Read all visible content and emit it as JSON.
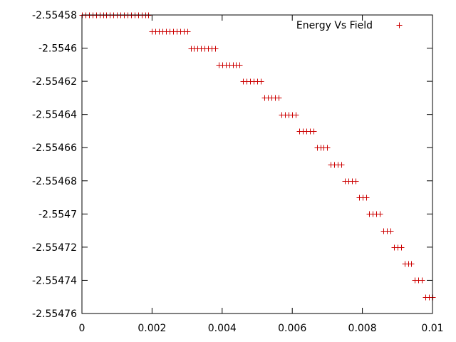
{
  "chart_data": {
    "type": "scatter",
    "title": "",
    "xlabel": "",
    "ylabel": "",
    "xlim": [
      0,
      0.01
    ],
    "ylim": [
      -2.55476,
      -2.55458
    ],
    "grid": false,
    "legend_position": "top-right",
    "x_ticks": [
      {
        "value": 0,
        "label": "0"
      },
      {
        "value": 0.002,
        "label": "0.002"
      },
      {
        "value": 0.004,
        "label": "0.004"
      },
      {
        "value": 0.006,
        "label": "0.006"
      },
      {
        "value": 0.008,
        "label": "0.008"
      },
      {
        "value": 0.01,
        "label": "0.01"
      }
    ],
    "y_ticks": [
      {
        "value": -2.55458,
        "label": "-2.55458"
      },
      {
        "value": -2.5546,
        "label": "-2.5546"
      },
      {
        "value": -2.55462,
        "label": "-2.55462"
      },
      {
        "value": -2.55464,
        "label": "-2.55464"
      },
      {
        "value": -2.55466,
        "label": "-2.55466"
      },
      {
        "value": -2.55468,
        "label": "-2.55468"
      },
      {
        "value": -2.5547,
        "label": "-2.5547"
      },
      {
        "value": -2.55472,
        "label": "-2.55472"
      },
      {
        "value": -2.55474,
        "label": "-2.55474"
      },
      {
        "value": -2.55476,
        "label": "-2.55476"
      }
    ],
    "series": [
      {
        "name": "Energy Vs Field",
        "color": "#cc0000",
        "marker": "plus",
        "points": [
          [
            0,
            -2.55458
          ],
          [
            0.0001,
            -2.55458
          ],
          [
            0.0002,
            -2.55458
          ],
          [
            0.0003,
            -2.55458
          ],
          [
            0.0004,
            -2.55458
          ],
          [
            0.0005,
            -2.55458
          ],
          [
            0.0006,
            -2.55458
          ],
          [
            0.0007,
            -2.55458
          ],
          [
            0.0008,
            -2.55458
          ],
          [
            0.0009,
            -2.55458
          ],
          [
            0.001,
            -2.55458
          ],
          [
            0.0011,
            -2.55458
          ],
          [
            0.0012,
            -2.55458
          ],
          [
            0.0013,
            -2.55458
          ],
          [
            0.0014,
            -2.55458
          ],
          [
            0.0015,
            -2.55458
          ],
          [
            0.0016,
            -2.55458
          ],
          [
            0.0017,
            -2.55458
          ],
          [
            0.0018,
            -2.55458
          ],
          [
            0.0019,
            -2.55458
          ],
          [
            0.002,
            -2.55459
          ],
          [
            0.0021,
            -2.55459
          ],
          [
            0.0022,
            -2.55459
          ],
          [
            0.0023,
            -2.55459
          ],
          [
            0.0024,
            -2.55459
          ],
          [
            0.0025,
            -2.55459
          ],
          [
            0.0026,
            -2.55459
          ],
          [
            0.0027,
            -2.55459
          ],
          [
            0.0028,
            -2.55459
          ],
          [
            0.0029,
            -2.55459
          ],
          [
            0.003,
            -2.55459
          ],
          [
            0.0031,
            -2.5546
          ],
          [
            0.0032,
            -2.5546
          ],
          [
            0.0033,
            -2.5546
          ],
          [
            0.0034,
            -2.5546
          ],
          [
            0.0035,
            -2.5546
          ],
          [
            0.0036,
            -2.5546
          ],
          [
            0.0037,
            -2.5546
          ],
          [
            0.0038,
            -2.5546
          ],
          [
            0.0039,
            -2.55461
          ],
          [
            0.004,
            -2.55461
          ],
          [
            0.0041,
            -2.55461
          ],
          [
            0.0042,
            -2.55461
          ],
          [
            0.0043,
            -2.55461
          ],
          [
            0.0044,
            -2.55461
          ],
          [
            0.0045,
            -2.55461
          ],
          [
            0.0046,
            -2.55462
          ],
          [
            0.0047,
            -2.55462
          ],
          [
            0.0048,
            -2.55462
          ],
          [
            0.0049,
            -2.55462
          ],
          [
            0.005,
            -2.55462
          ],
          [
            0.0051,
            -2.55462
          ],
          [
            0.0052,
            -2.55463
          ],
          [
            0.0053,
            -2.55463
          ],
          [
            0.0054,
            -2.55463
          ],
          [
            0.0055,
            -2.55463
          ],
          [
            0.0056,
            -2.55463
          ],
          [
            0.0057,
            -2.55464
          ],
          [
            0.0058,
            -2.55464
          ],
          [
            0.0059,
            -2.55464
          ],
          [
            0.006,
            -2.55464
          ],
          [
            0.0061,
            -2.55464
          ],
          [
            0.0062,
            -2.55465
          ],
          [
            0.0063,
            -2.55465
          ],
          [
            0.0064,
            -2.55465
          ],
          [
            0.0065,
            -2.55465
          ],
          [
            0.0066,
            -2.55465
          ],
          [
            0.0067,
            -2.55466
          ],
          [
            0.0068,
            -2.55466
          ],
          [
            0.0069,
            -2.55466
          ],
          [
            0.007,
            -2.55466
          ],
          [
            0.0071,
            -2.55467
          ],
          [
            0.0072,
            -2.55467
          ],
          [
            0.0073,
            -2.55467
          ],
          [
            0.0074,
            -2.55467
          ],
          [
            0.0075,
            -2.55468
          ],
          [
            0.0076,
            -2.55468
          ],
          [
            0.0077,
            -2.55468
          ],
          [
            0.0078,
            -2.55468
          ],
          [
            0.0079,
            -2.55469
          ],
          [
            0.008,
            -2.55469
          ],
          [
            0.0081,
            -2.55469
          ],
          [
            0.0082,
            -2.5547
          ],
          [
            0.0083,
            -2.5547
          ],
          [
            0.0084,
            -2.5547
          ],
          [
            0.0085,
            -2.5547
          ],
          [
            0.0086,
            -2.55471
          ],
          [
            0.0087,
            -2.55471
          ],
          [
            0.0088,
            -2.55471
          ],
          [
            0.0089,
            -2.55472
          ],
          [
            0.009,
            -2.55472
          ],
          [
            0.0091,
            -2.55472
          ],
          [
            0.0092,
            -2.55473
          ],
          [
            0.0093,
            -2.55473
          ],
          [
            0.0094,
            -2.55473
          ],
          [
            0.0095,
            -2.55474
          ],
          [
            0.0096,
            -2.55474
          ],
          [
            0.0097,
            -2.55474
          ],
          [
            0.0098,
            -2.55475
          ],
          [
            0.0099,
            -2.55475
          ],
          [
            0.01,
            -2.55475
          ]
        ]
      }
    ]
  }
}
